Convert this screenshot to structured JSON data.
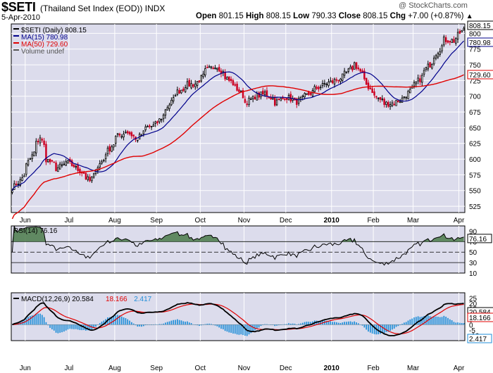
{
  "header": {
    "ticker": "$SETI",
    "name": "(Thailand Set Index (EOD))",
    "exchange": "INDX",
    "date": "5-Apr-2010",
    "brand": "@ StockCharts.com",
    "quote": {
      "open_label": "Open",
      "open": "801.15",
      "high_label": "High",
      "high": "808.15",
      "low_label": "Low",
      "low": "790.33",
      "close_label": "Close",
      "close": "808.15",
      "chg_label": "Chg",
      "chg": "+7.00 (+0.87%)",
      "chg_arrow": "▲"
    }
  },
  "chart_data": [
    {
      "type": "candlestick",
      "panel": "price",
      "legend": [
        {
          "label": "$SETI (Daily) 808.15",
          "color": "#000000"
        },
        {
          "label": "MA(15) 780.98",
          "color": "#00008b"
        },
        {
          "label": "MA(50) 729.60",
          "color": "#e00000"
        },
        {
          "label": "Volume undef",
          "color": "#555555"
        }
      ],
      "ylim": [
        515,
        815
      ],
      "y_ticks": [
        525,
        550,
        575,
        600,
        625,
        650,
        675,
        700,
        725,
        750,
        775,
        800
      ],
      "x_labels": [
        "Jun",
        "Jul",
        "Aug",
        "Sep",
        "Oct",
        "Nov",
        "Dec",
        "2010",
        "Feb",
        "Mar",
        "Apr"
      ],
      "value_badges": [
        {
          "value": "808.15",
          "color": "#000000"
        },
        {
          "value": "780.98",
          "color": "#00008b"
        },
        {
          "value": "729.60",
          "color": "#e00000"
        }
      ],
      "close_anchors": [
        [
          "2009-05-21",
          555
        ],
        [
          "2009-05-27",
          565
        ],
        [
          "2009-06-02",
          595
        ],
        [
          "2009-06-10",
          635
        ],
        [
          "2009-06-15",
          600
        ],
        [
          "2009-06-22",
          585
        ],
        [
          "2009-06-29",
          595
        ],
        [
          "2009-07-06",
          585
        ],
        [
          "2009-07-10",
          578
        ],
        [
          "2009-07-15",
          565
        ],
        [
          "2009-07-20",
          585
        ],
        [
          "2009-07-27",
          610
        ],
        [
          "2009-08-03",
          635
        ],
        [
          "2009-08-10",
          645
        ],
        [
          "2009-08-17",
          630
        ],
        [
          "2009-08-24",
          650
        ],
        [
          "2009-08-31",
          655
        ],
        [
          "2009-09-07",
          680
        ],
        [
          "2009-09-14",
          705
        ],
        [
          "2009-09-21",
          718
        ],
        [
          "2009-09-28",
          720
        ],
        [
          "2009-10-05",
          740
        ],
        [
          "2009-10-12",
          750
        ],
        [
          "2009-10-16",
          738
        ],
        [
          "2009-10-21",
          725
        ],
        [
          "2009-10-27",
          712
        ],
        [
          "2009-11-02",
          690
        ],
        [
          "2009-11-09",
          700
        ],
        [
          "2009-11-16",
          705
        ],
        [
          "2009-11-23",
          690
        ],
        [
          "2009-11-30",
          700
        ],
        [
          "2009-12-07",
          690
        ],
        [
          "2009-12-14",
          700
        ],
        [
          "2009-12-21",
          712
        ],
        [
          "2009-12-28",
          720
        ],
        [
          "2010-01-04",
          725
        ],
        [
          "2010-01-11",
          735
        ],
        [
          "2010-01-18",
          752
        ],
        [
          "2010-01-22",
          735
        ],
        [
          "2010-01-27",
          715
        ],
        [
          "2010-02-01",
          700
        ],
        [
          "2010-02-08",
          688
        ],
        [
          "2010-02-15",
          690
        ],
        [
          "2010-02-22",
          700
        ],
        [
          "2010-03-01",
          718
        ],
        [
          "2010-03-08",
          740
        ],
        [
          "2010-03-15",
          765
        ],
        [
          "2010-03-22",
          790
        ],
        [
          "2010-03-29",
          788
        ],
        [
          "2010-04-01",
          801
        ],
        [
          "2010-04-05",
          808
        ]
      ]
    },
    {
      "type": "line",
      "panel": "rsi",
      "legend": [
        {
          "label": "RSI(14) 76.16",
          "color": "#000000"
        }
      ],
      "ylim": [
        10,
        100
      ],
      "y_ticks": [
        10,
        30,
        50,
        70,
        90
      ],
      "reference_lines": [
        70,
        50,
        30
      ],
      "value_badges": [
        {
          "value": "76.16",
          "color": "#000000"
        }
      ]
    },
    {
      "type": "line",
      "panel": "macd",
      "legend": [
        {
          "label": "MACD(12,26,9) 20.584",
          "color": "#000000"
        },
        {
          "label": "18.166",
          "color": "#e00000"
        },
        {
          "label": "2.417",
          "color": "#1f8ed8"
        }
      ],
      "ylim": [
        -15,
        30
      ],
      "y_ticks": [
        -10,
        -5,
        0,
        5,
        10,
        15,
        20,
        25
      ],
      "value_badges": [
        {
          "value": "20.584",
          "color": "#000000"
        },
        {
          "value": "18.166",
          "color": "#e00000"
        },
        {
          "value": "2.417",
          "color": "#1f8ed8"
        }
      ],
      "x_labels": [
        "Jun",
        "Jul",
        "Aug",
        "Sep",
        "Oct",
        "Nov",
        "Dec",
        "2010",
        "Feb",
        "Mar",
        "Apr"
      ]
    }
  ],
  "colors": {
    "panel_bg": "#dcdcec",
    "grid": "#ffffff",
    "up_candle": "#000000",
    "down_candle": "#cc0022",
    "ma15": "#00008b",
    "ma50": "#e00000",
    "rsi_fill": "#4a7a4a",
    "macd_hist": "#1f8ed8"
  }
}
